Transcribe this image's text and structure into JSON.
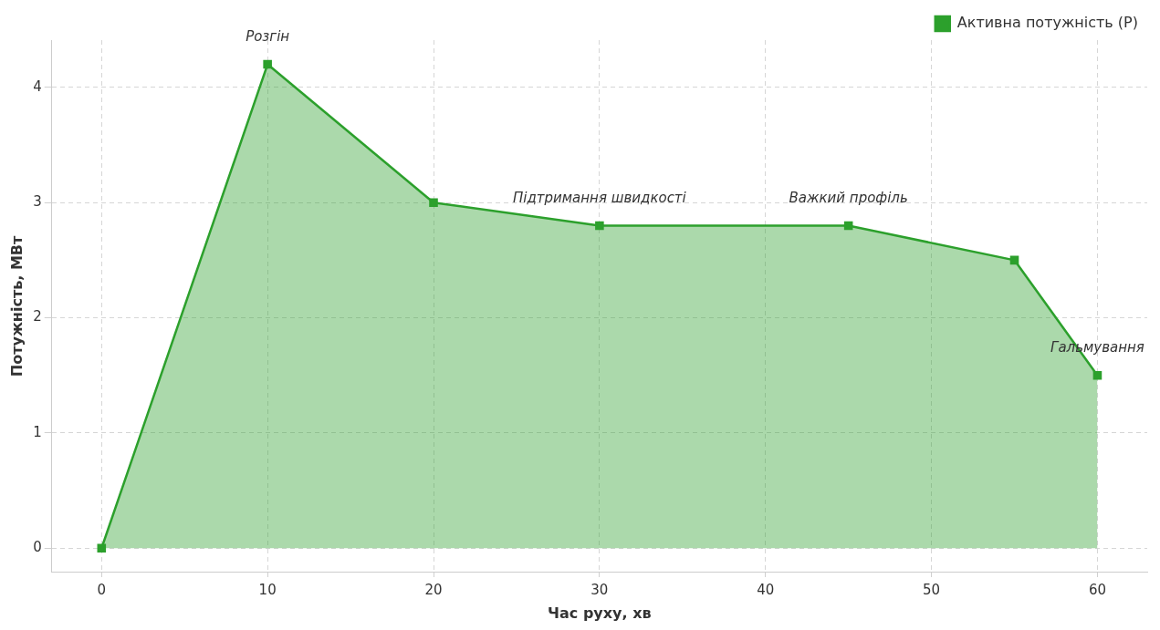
{
  "chart_data": {
    "type": "area",
    "xlabel": "Час руху, хв",
    "ylabel": "Потужність, МВт",
    "x": [
      0,
      10,
      20,
      30,
      45,
      55,
      60
    ],
    "series": [
      {
        "name": "Активна потужність (P)",
        "color": "#2ca02c",
        "values": [
          0,
          4.2,
          3.0,
          2.8,
          2.8,
          2.5,
          1.5
        ]
      }
    ],
    "xlim": [
      -3,
      63
    ],
    "ylim": [
      -0.21,
      4.41
    ],
    "xticks": [
      0,
      10,
      20,
      30,
      40,
      50,
      60
    ],
    "yticks": [
      0,
      1,
      2,
      3,
      4
    ],
    "annotations": [
      {
        "text": "Розгін",
        "x": 10,
        "y": 4.2
      },
      {
        "text": "Підтримання швидкості",
        "x": 30,
        "y": 2.8
      },
      {
        "text": "Важкий профіль",
        "x": 45,
        "y": 2.8
      },
      {
        "text": "Гальмування",
        "x": 60,
        "y": 1.5
      }
    ],
    "grid": true,
    "legend": "top right",
    "marker": "square",
    "line_style": "solid"
  }
}
